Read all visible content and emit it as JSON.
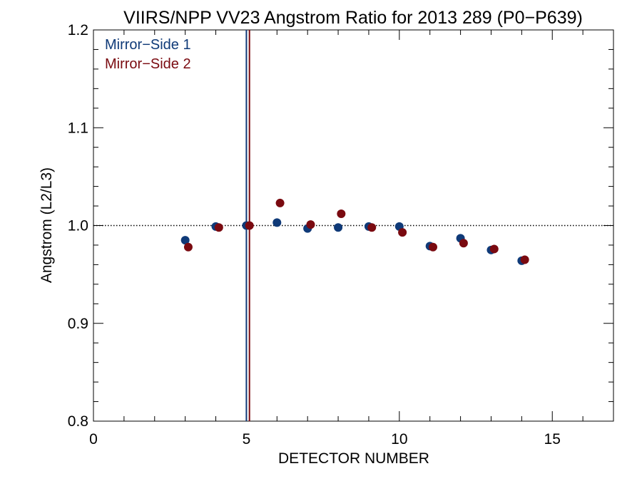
{
  "chart_data": {
    "type": "scatter",
    "title": "VIIRS/NPP VV23 Angstrom Ratio for 2013 289 (P0−P639)",
    "xlabel": "DETECTOR NUMBER",
    "ylabel": "Angstrom (L2/L3)",
    "xlim": [
      0,
      17
    ],
    "ylim": [
      0.8,
      1.2
    ],
    "x_ticks": [
      0,
      5,
      10,
      15
    ],
    "x_tick_labels": [
      "0",
      "5",
      "10",
      "15"
    ],
    "y_ticks": [
      0.8,
      0.9,
      1.0,
      1.1,
      1.2
    ],
    "y_tick_labels": [
      "0.8",
      "0.9",
      "1.0",
      "1.1",
      "1.2"
    ],
    "reference_line_y": 1.0,
    "grid": false,
    "legend_position": "top-left",
    "series": [
      {
        "name": "Mirror−Side 1",
        "color": "#0f3a78",
        "marker_line_x": 5.0,
        "x": [
          3,
          4,
          5,
          6,
          7,
          8,
          9,
          10,
          11,
          12,
          13,
          14
        ],
        "y": [
          0.985,
          0.999,
          1.0,
          1.003,
          0.997,
          0.998,
          0.999,
          0.999,
          0.979,
          0.987,
          0.975,
          0.964
        ]
      },
      {
        "name": "Mirror−Side 2",
        "color": "#7a0a10",
        "marker_line_x": 5.1,
        "x": [
          3.1,
          4.1,
          5.1,
          6.1,
          7.1,
          8.1,
          9.1,
          10.1,
          11.1,
          12.1,
          13.1,
          14.1
        ],
        "y": [
          0.978,
          0.998,
          1.0,
          1.023,
          1.001,
          1.012,
          0.998,
          0.993,
          0.978,
          0.982,
          0.976,
          0.965
        ]
      }
    ]
  }
}
